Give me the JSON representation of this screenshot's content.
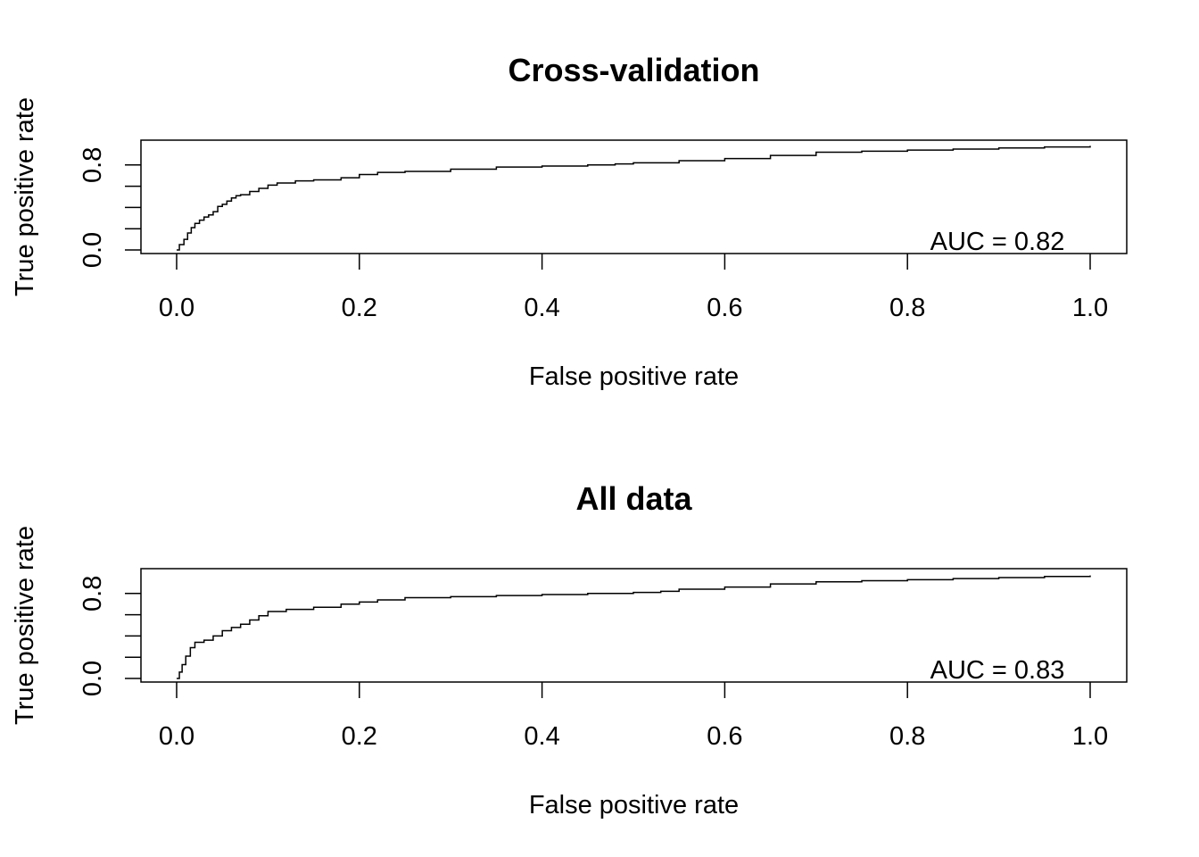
{
  "chart_data": [
    {
      "type": "line",
      "title": "Cross-validation",
      "xlabel": "False positive rate",
      "ylabel": "True positive rate",
      "xlim": [
        0,
        1
      ],
      "ylim": [
        0,
        1
      ],
      "x_ticks": [
        "0.0",
        "0.2",
        "0.4",
        "0.6",
        "0.8",
        "1.0"
      ],
      "y_ticks": [
        "0.0",
        "0.8"
      ],
      "y_tick_values": [
        0,
        0.2,
        0.4,
        0.6,
        0.8
      ],
      "annotation": "AUC = 0.82",
      "series": [
        {
          "x": [
            0.0,
            0.003,
            0.008,
            0.012,
            0.016,
            0.02,
            0.025,
            0.03,
            0.035,
            0.04,
            0.045,
            0.05,
            0.055,
            0.06,
            0.065,
            0.07,
            0.08,
            0.09,
            0.1,
            0.11,
            0.13,
            0.15,
            0.18,
            0.2,
            0.22,
            0.25,
            0.3,
            0.35,
            0.4,
            0.45,
            0.48,
            0.5,
            0.55,
            0.6,
            0.65,
            0.7,
            0.75,
            0.8,
            0.85,
            0.9,
            0.95,
            1.0
          ],
          "y": [
            0.0,
            0.05,
            0.1,
            0.16,
            0.21,
            0.25,
            0.28,
            0.31,
            0.33,
            0.36,
            0.41,
            0.43,
            0.46,
            0.49,
            0.51,
            0.52,
            0.55,
            0.58,
            0.61,
            0.63,
            0.65,
            0.66,
            0.68,
            0.71,
            0.73,
            0.74,
            0.76,
            0.78,
            0.79,
            0.8,
            0.81,
            0.82,
            0.84,
            0.86,
            0.89,
            0.92,
            0.93,
            0.94,
            0.95,
            0.96,
            0.97,
            0.98
          ]
        }
      ]
    },
    {
      "type": "line",
      "title": "All data",
      "xlabel": "False positive rate",
      "ylabel": "True positive rate",
      "xlim": [
        0,
        1
      ],
      "ylim": [
        0,
        1
      ],
      "x_ticks": [
        "0.0",
        "0.2",
        "0.4",
        "0.6",
        "0.8",
        "1.0"
      ],
      "y_ticks": [
        "0.0",
        "0.8"
      ],
      "y_tick_values": [
        0,
        0.2,
        0.4,
        0.6,
        0.8
      ],
      "annotation": "AUC = 0.83",
      "series": [
        {
          "x": [
            0.0,
            0.003,
            0.006,
            0.01,
            0.015,
            0.02,
            0.03,
            0.04,
            0.05,
            0.06,
            0.07,
            0.08,
            0.09,
            0.1,
            0.12,
            0.15,
            0.18,
            0.2,
            0.22,
            0.25,
            0.3,
            0.35,
            0.4,
            0.45,
            0.5,
            0.53,
            0.55,
            0.6,
            0.65,
            0.7,
            0.75,
            0.8,
            0.85,
            0.9,
            0.95,
            1.0
          ],
          "y": [
            0.0,
            0.06,
            0.13,
            0.21,
            0.29,
            0.34,
            0.36,
            0.4,
            0.45,
            0.48,
            0.51,
            0.55,
            0.59,
            0.63,
            0.65,
            0.67,
            0.7,
            0.72,
            0.74,
            0.76,
            0.77,
            0.78,
            0.79,
            0.8,
            0.81,
            0.82,
            0.84,
            0.86,
            0.89,
            0.91,
            0.92,
            0.93,
            0.94,
            0.95,
            0.96,
            0.97
          ]
        }
      ]
    }
  ]
}
